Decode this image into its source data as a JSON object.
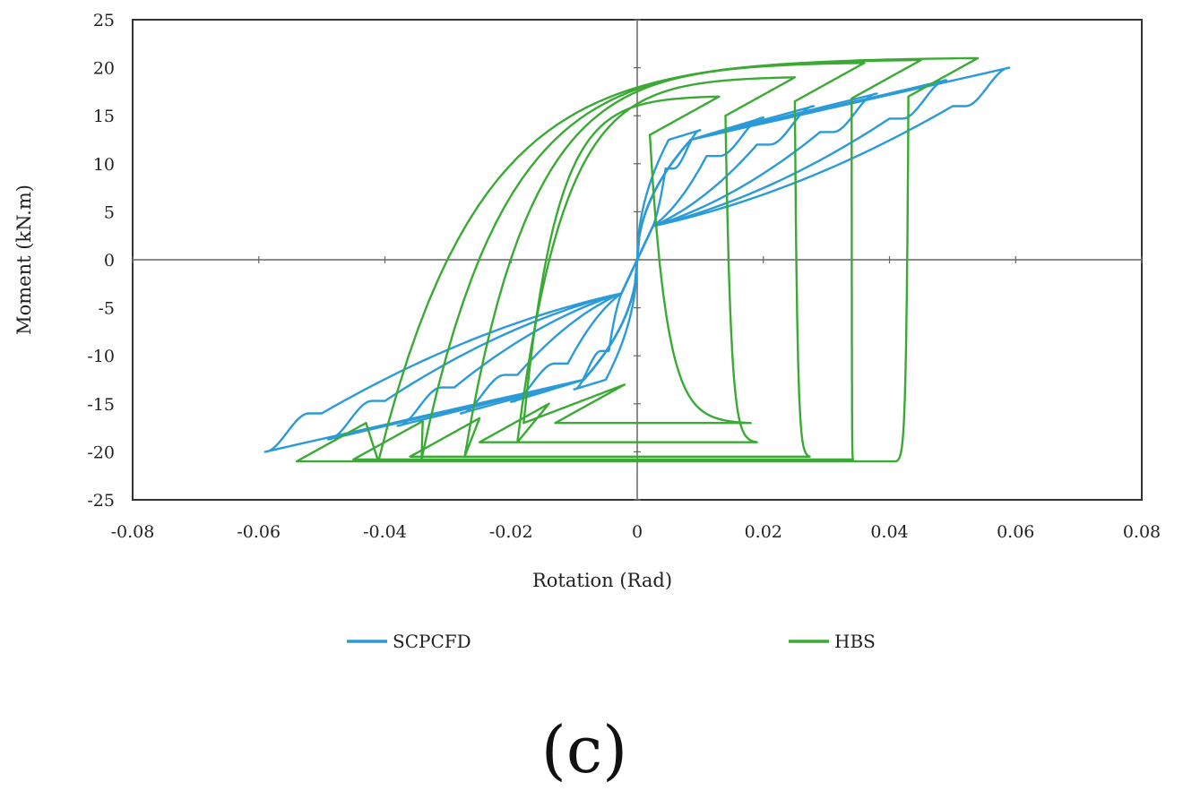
{
  "panel_label": "(c)",
  "chart_data": {
    "type": "line",
    "title": "",
    "xlabel": "Rotation (Rad)",
    "ylabel": "Moment (kN.m)",
    "xlim": [
      -0.08,
      0.08
    ],
    "ylim": [
      -25,
      25
    ],
    "x_ticks": [
      "-0.08",
      "-0.06",
      "-0.04",
      "-0.02",
      "0",
      "0.02",
      "0.04",
      "0.06",
      "0.08"
    ],
    "y_ticks": [
      "25",
      "20",
      "15",
      "10",
      "5",
      "0",
      "-5",
      "-10",
      "-15",
      "-20",
      "-25"
    ],
    "grid": false,
    "legend_position": "bottom",
    "series": [
      {
        "name": "SCPCFD",
        "color": "#2a9bd8",
        "loops": [
          {
            "amp": 0.01,
            "peak": 13.5
          },
          {
            "amp": 0.02,
            "peak": 14.8
          },
          {
            "amp": 0.028,
            "peak": 16.0
          },
          {
            "amp": 0.038,
            "peak": 17.3
          },
          {
            "amp": 0.049,
            "peak": 18.7
          },
          {
            "amp": 0.059,
            "peak": 20.0
          }
        ]
      },
      {
        "name": "HBS",
        "color": "#3aaa35",
        "loops": [
          {
            "amp": 0.013,
            "peak": 17.0
          },
          {
            "amp": 0.025,
            "peak": 19.0
          },
          {
            "amp": 0.036,
            "peak": 20.5
          },
          {
            "amp": 0.045,
            "peak": 20.8
          },
          {
            "amp": 0.054,
            "peak": 21.0
          }
        ]
      }
    ]
  }
}
